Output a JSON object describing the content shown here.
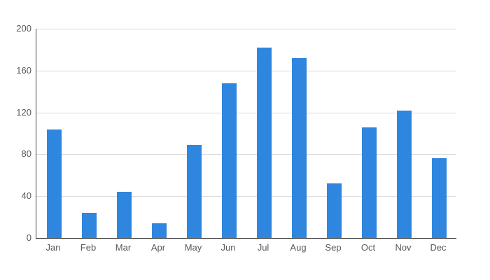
{
  "chart_data": {
    "type": "bar",
    "title": "",
    "xlabel": "",
    "ylabel": "",
    "categories": [
      "Jan",
      "Feb",
      "Mar",
      "Apr",
      "May",
      "Jun",
      "Jul",
      "Aug",
      "Sep",
      "Oct",
      "Nov",
      "Dec"
    ],
    "values": [
      104,
      24,
      44,
      14,
      89,
      148,
      182,
      172,
      52,
      106,
      122,
      76
    ],
    "ylim": [
      0,
      200
    ],
    "y_ticks": [
      0,
      40,
      80,
      120,
      160,
      200
    ],
    "grid": true,
    "legend": "none",
    "colors": {
      "bar": "#2e86de",
      "axis": "#424242",
      "grid": "#d9d9d9",
      "tick_label": "#58595b",
      "background": "#ffffff"
    }
  }
}
